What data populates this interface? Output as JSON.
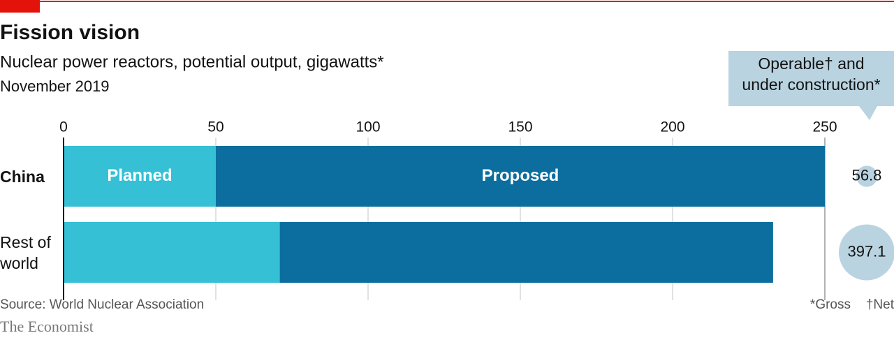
{
  "chart_data": {
    "type": "stacked-bar-horizontal",
    "title": "Fission vision",
    "subtitle": "Nuclear power reactors, potential output, gigawatts*",
    "date": "November 2019",
    "categories": [
      "China",
      "Rest of world"
    ],
    "series": [
      {
        "name": "Planned",
        "color": "#35c0d6",
        "values": [
          50,
          71
        ]
      },
      {
        "name": "Proposed",
        "color": "#0b6e9f",
        "values": [
          200,
          162
        ]
      }
    ],
    "xlim": [
      0,
      250
    ],
    "xticks": [
      0,
      50,
      100,
      150,
      200,
      250
    ],
    "grid": true,
    "bubbles": {
      "label": "Operable† and under construction*",
      "color": "#b9d3e0",
      "values": [
        56.8,
        397.1
      ]
    },
    "footnotes": [
      "*Gross",
      "†Net"
    ],
    "source": "Source: World Nuclear Association",
    "brand": "The Economist"
  }
}
